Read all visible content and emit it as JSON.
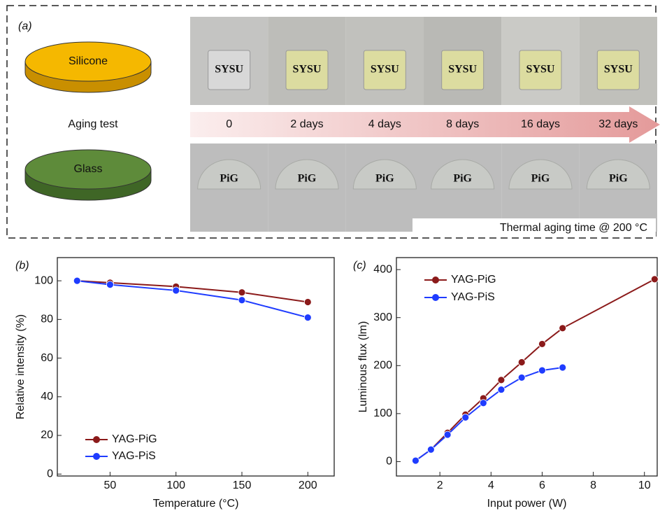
{
  "panel_a": {
    "label": "(a)",
    "materials": [
      "Silicone",
      "Glass"
    ],
    "arrow_label": "Aging test",
    "times": [
      "0",
      "2 days",
      "4 days",
      "8 days",
      "16 days",
      "32 days"
    ],
    "sample_top": "SYSU",
    "sample_bottom": "PiG",
    "caption": "Thermal aging time @ 200 °C"
  },
  "chart_data": [
    {
      "type": "line",
      "panel_label": "(b)",
      "x_label": "Temperature (°C)",
      "y_label": "Relative intensity (%)",
      "x": [
        25,
        50,
        100,
        150,
        200
      ],
      "series": [
        {
          "name": "YAG-PiG",
          "color": "#8b1a1a",
          "values": [
            100,
            99,
            97,
            94,
            89
          ]
        },
        {
          "name": "YAG-PiS",
          "color": "#1f3cff",
          "values": [
            100,
            98,
            95,
            90,
            81
          ]
        }
      ],
      "xlim": [
        10,
        220
      ],
      "xticks": [
        50,
        100,
        150,
        200
      ],
      "ylim": [
        -1,
        112
      ],
      "yticks": [
        0,
        20,
        40,
        60,
        80,
        100
      ],
      "legend": "lower left"
    },
    {
      "type": "line",
      "panel_label": "(c)",
      "x_label": "Input power (W)",
      "y_label": "Luminous flux (lm)",
      "series": [
        {
          "name": "YAG-PiG",
          "color": "#8b1a1a",
          "x": [
            1.05,
            1.65,
            2.3,
            3,
            3.7,
            4.4,
            5.2,
            6,
            6.8,
            10.4
          ],
          "values": [
            2,
            25,
            60,
            98,
            132,
            170,
            207,
            245,
            278,
            380
          ]
        },
        {
          "name": "YAG-PiS",
          "color": "#1f3cff",
          "x": [
            1.05,
            1.65,
            2.3,
            3,
            3.7,
            4.4,
            5.2,
            6,
            6.8
          ],
          "values": [
            2,
            25,
            56,
            92,
            122,
            150,
            175,
            190,
            196
          ]
        }
      ],
      "xlim": [
        0.3,
        10.5
      ],
      "xticks": [
        2,
        4,
        6,
        8,
        10
      ],
      "ylim": [
        -30,
        425
      ],
      "yticks": [
        0,
        100,
        200,
        300,
        400
      ],
      "legend": "upper left"
    }
  ]
}
